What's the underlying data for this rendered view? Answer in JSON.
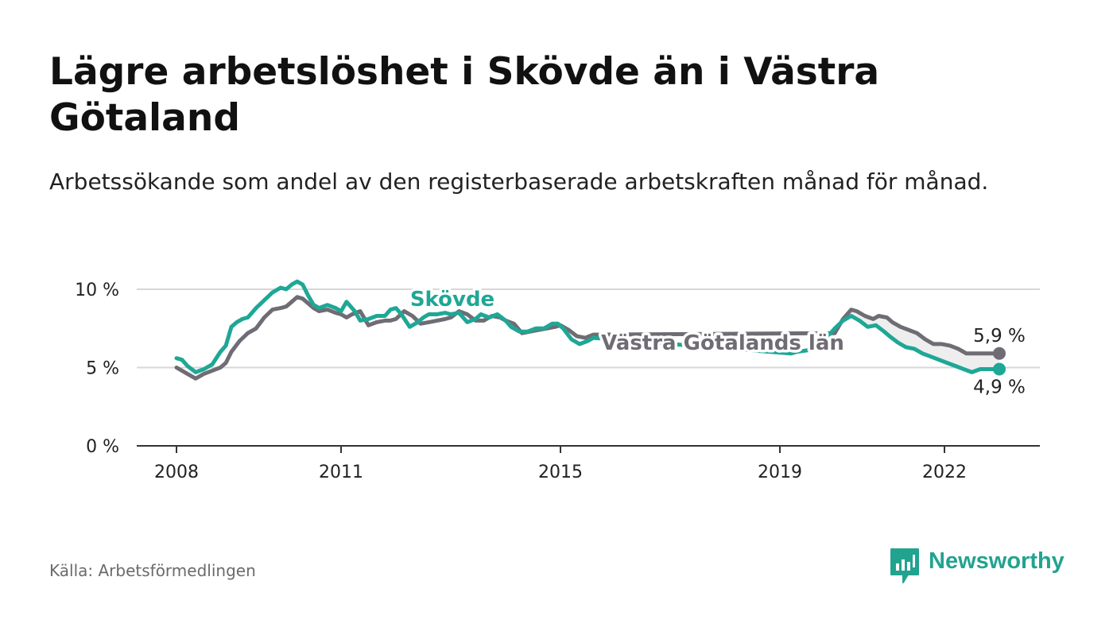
{
  "title": "Lägre arbetslöshet i Skövde än i Västra Götaland",
  "subtitle": "Arbetssökande som andel av den registerbaserade arbetskraften månad för månad.",
  "source": "Källa: Arbetsförmedlingen",
  "brand": "Newsworthy",
  "colors": {
    "skovde": "#1fa796",
    "vgl": "#6f6c74",
    "grid": "#d7d7d7",
    "axis": "#333333",
    "fill": "#eeeeee",
    "brand": "#22a38f"
  },
  "chart_data": {
    "type": "line",
    "title": "Lägre arbetslöshet i Skövde än i Västra Götaland",
    "xlabel": "",
    "ylabel": "",
    "xlim": [
      2007.7,
      2023.6
    ],
    "ylim": [
      0,
      10
    ],
    "y_ticks": [
      {
        "value": 0,
        "label": "0 %"
      },
      {
        "value": 5,
        "label": "5 %"
      },
      {
        "value": 10,
        "label": "10 %"
      }
    ],
    "x_ticks": [
      {
        "value": 2008,
        "label": "2008"
      },
      {
        "value": 2011,
        "label": "2011"
      },
      {
        "value": 2015,
        "label": "2015"
      },
      {
        "value": 2019,
        "label": "2019"
      },
      {
        "value": 2022,
        "label": "2022"
      }
    ],
    "grid": true,
    "series": [
      {
        "name": "Skövde",
        "color": "#1fa796",
        "end_label": "4,9 %",
        "x": [
          2008.0,
          2008.1,
          2008.2,
          2008.35,
          2008.5,
          2008.65,
          2008.8,
          2008.9,
          2009.0,
          2009.1,
          2009.2,
          2009.3,
          2009.45,
          2009.6,
          2009.75,
          2009.9,
          2010.0,
          2010.1,
          2010.2,
          2010.3,
          2010.4,
          2010.5,
          2010.6,
          2010.75,
          2010.9,
          2011.0,
          2011.1,
          2011.25,
          2011.35,
          2011.5,
          2011.65,
          2011.8,
          2011.9,
          2012.0,
          2012.1,
          2012.25,
          2012.4,
          2012.5,
          2012.6,
          2012.75,
          2012.9,
          2013.0,
          2013.15,
          2013.3,
          2013.45,
          2013.55,
          2013.7,
          2013.85,
          2014.0,
          2014.1,
          2014.25,
          2014.4,
          2014.55,
          2014.7,
          2014.85,
          2014.95,
          2015.05,
          2015.2,
          2015.35,
          2015.5,
          2015.6,
          2019.2,
          2019.3,
          2019.5,
          2019.9,
          2020.0,
          2020.15,
          2020.3,
          2020.45,
          2020.6,
          2020.75,
          2020.9,
          2021.0,
          2021.15,
          2021.3,
          2021.45,
          2021.6,
          2021.75,
          2021.9,
          2022.05,
          2022.2,
          2022.35,
          2022.5,
          2022.65,
          2022.8,
          2023.0
        ],
        "values": [
          5.6,
          5.5,
          5.1,
          4.7,
          4.9,
          5.2,
          6.0,
          6.4,
          7.6,
          7.9,
          8.1,
          8.2,
          8.8,
          9.3,
          9.8,
          10.1,
          10.0,
          10.3,
          10.5,
          10.3,
          9.6,
          9.0,
          8.8,
          9.0,
          8.8,
          8.6,
          9.2,
          8.6,
          8.0,
          8.1,
          8.3,
          8.3,
          8.7,
          8.8,
          8.4,
          7.6,
          7.9,
          8.2,
          8.4,
          8.4,
          8.5,
          8.4,
          8.5,
          7.9,
          8.1,
          8.4,
          8.2,
          8.4,
          8.0,
          7.6,
          7.3,
          7.3,
          7.5,
          7.5,
          7.8,
          7.8,
          7.5,
          6.8,
          6.5,
          6.7,
          6.9,
          5.9,
          6.0,
          6.1,
          7.1,
          7.5,
          8.0,
          8.3,
          8.0,
          7.6,
          7.7,
          7.3,
          7.0,
          6.6,
          6.3,
          6.2,
          5.9,
          5.7,
          5.5,
          5.3,
          5.1,
          4.9,
          4.7,
          4.9,
          4.9,
          4.9
        ]
      },
      {
        "name": "Västra Götalands län",
        "color": "#6f6c74",
        "end_label": "5,9 %",
        "x": [
          2008.0,
          2008.1,
          2008.2,
          2008.35,
          2008.5,
          2008.65,
          2008.8,
          2008.9,
          2009.0,
          2009.15,
          2009.3,
          2009.45,
          2009.6,
          2009.75,
          2009.9,
          2010.0,
          2010.1,
          2010.2,
          2010.3,
          2010.4,
          2010.5,
          2010.6,
          2010.75,
          2010.9,
          2011.0,
          2011.1,
          2011.2,
          2011.35,
          2011.5,
          2011.65,
          2011.8,
          2011.9,
          2012.0,
          2012.15,
          2012.3,
          2012.45,
          2012.6,
          2012.75,
          2012.9,
          2013.0,
          2013.15,
          2013.3,
          2013.45,
          2013.6,
          2013.75,
          2013.9,
          2014.0,
          2014.15,
          2014.3,
          2014.45,
          2014.6,
          2014.75,
          2014.9,
          2015.0,
          2015.15,
          2015.3,
          2015.45,
          2015.6,
          2020.0,
          2020.15,
          2020.3,
          2020.4,
          2020.55,
          2020.7,
          2020.8,
          2020.95,
          2021.05,
          2021.2,
          2021.35,
          2021.5,
          2021.65,
          2021.8,
          2021.95,
          2022.1,
          2022.25,
          2022.4,
          2022.55,
          2022.7,
          2022.85,
          2023.0
        ],
        "values": [
          5.0,
          4.8,
          4.6,
          4.3,
          4.6,
          4.8,
          5.0,
          5.3,
          6.0,
          6.7,
          7.2,
          7.5,
          8.2,
          8.7,
          8.8,
          8.9,
          9.2,
          9.5,
          9.4,
          9.1,
          8.8,
          8.6,
          8.7,
          8.5,
          8.4,
          8.2,
          8.4,
          8.6,
          7.7,
          7.9,
          8.0,
          8.0,
          8.1,
          8.6,
          8.3,
          7.8,
          7.9,
          8.0,
          8.1,
          8.2,
          8.6,
          8.4,
          8.0,
          8.0,
          8.3,
          8.2,
          8.0,
          7.8,
          7.2,
          7.3,
          7.4,
          7.5,
          7.6,
          7.7,
          7.4,
          7.0,
          6.9,
          7.1,
          7.2,
          8.1,
          8.7,
          8.6,
          8.3,
          8.1,
          8.3,
          8.2,
          7.9,
          7.6,
          7.4,
          7.2,
          6.8,
          6.5,
          6.5,
          6.4,
          6.2,
          5.9,
          5.9,
          5.9,
          5.9,
          5.9
        ]
      }
    ]
  }
}
